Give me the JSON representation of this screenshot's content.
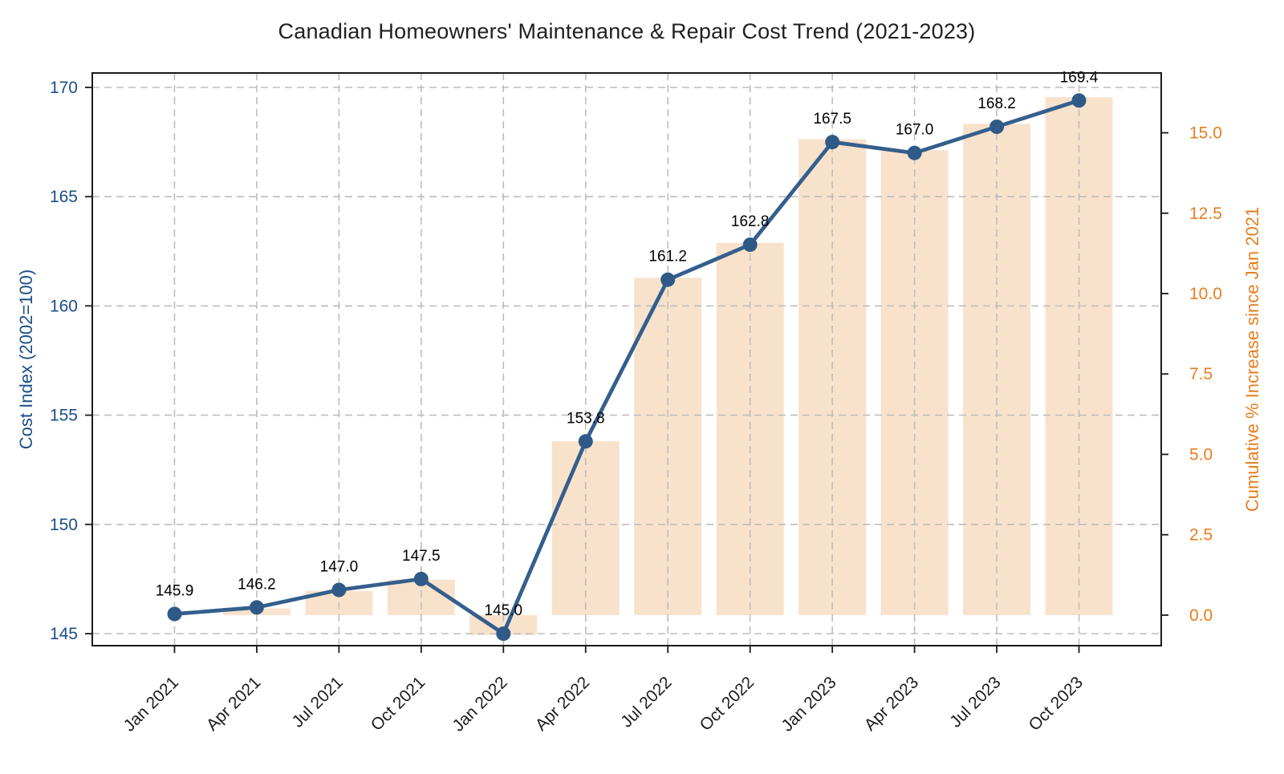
{
  "chart_data": {
    "type": "combo",
    "title": "Canadian Homeowners' Maintenance & Repair Cost Trend (2021-2023)",
    "categories": [
      "Jan 2021",
      "Apr 2021",
      "Jul 2021",
      "Oct 2021",
      "Jan 2022",
      "Apr 2022",
      "Jul 2022",
      "Oct 2022",
      "Jan 2023",
      "Apr 2023",
      "Jul 2023",
      "Oct 2023"
    ],
    "series": [
      {
        "name": "Cost Index",
        "type": "line",
        "axis": "left",
        "color": "#345f8d",
        "marker_color": "#2f5a88",
        "values": [
          145.9,
          146.2,
          147.0,
          147.5,
          145.0,
          153.8,
          161.2,
          162.8,
          167.5,
          167.0,
          168.2,
          169.4
        ],
        "point_labels": [
          "145.9",
          "146.2",
          "147.0",
          "147.5",
          "145.0",
          "153.8",
          "161.2",
          "162.8",
          "167.5",
          "167.0",
          "168.2",
          "169.4"
        ]
      },
      {
        "name": "Cumulative % Increase since Jan 2021",
        "type": "bar",
        "axis": "right",
        "color": "#f9e2cc",
        "values": [
          0.0,
          0.21,
          0.75,
          1.1,
          -0.62,
          5.41,
          10.49,
          11.58,
          14.8,
          14.46,
          15.28,
          16.11
        ]
      }
    ],
    "x_axis": {
      "tick_labels": [
        "Jan 2021",
        "Apr 2021",
        "Jul 2021",
        "Oct 2021",
        "Jan 2022",
        "Apr 2022",
        "Jul 2022",
        "Oct 2022",
        "Jan 2023",
        "Apr 2023",
        "Jul 2023",
        "Oct 2023"
      ],
      "color": "#1c1c1c"
    },
    "left_axis": {
      "label": "Cost Index (2002=100)",
      "tick_labels": [
        "145",
        "150",
        "155",
        "160",
        "165",
        "170"
      ],
      "tick_values": [
        145,
        150,
        155,
        160,
        165,
        170
      ],
      "range": [
        144.45,
        170.66
      ],
      "color": "#1b4f87"
    },
    "right_axis": {
      "label": "Cumulative % Increase since Jan 2021",
      "tick_labels": [
        "0.0",
        "2.5",
        "5.0",
        "7.5",
        "10.0",
        "12.5",
        "15.0"
      ],
      "tick_values": [
        0,
        2.5,
        5,
        7.5,
        10,
        12.5,
        15
      ],
      "range": [
        -0.95,
        16.86
      ],
      "color": "#e87d1e"
    },
    "grid": {
      "show": true,
      "color": "#bdbdbd",
      "dash": "9 6"
    },
    "spine_color": "#1a1a1a",
    "background": "#ffffff"
  }
}
